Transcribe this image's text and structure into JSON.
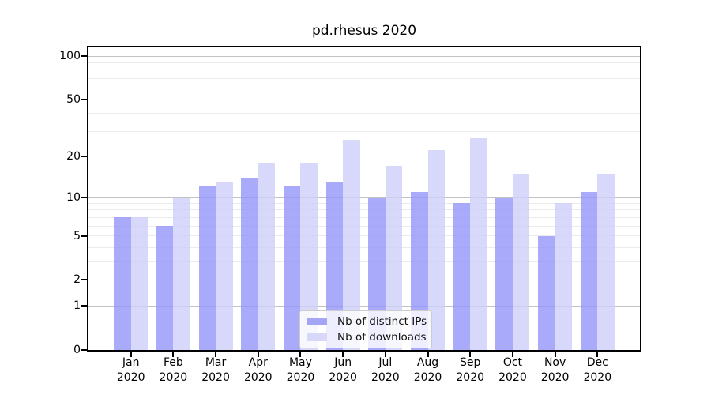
{
  "chart_data": {
    "type": "bar",
    "title": "pd.rhesus 2020",
    "categories": [
      {
        "month": "Jan",
        "year": "2020"
      },
      {
        "month": "Feb",
        "year": "2020"
      },
      {
        "month": "Mar",
        "year": "2020"
      },
      {
        "month": "Apr",
        "year": "2020"
      },
      {
        "month": "May",
        "year": "2020"
      },
      {
        "month": "Jun",
        "year": "2020"
      },
      {
        "month": "Jul",
        "year": "2020"
      },
      {
        "month": "Aug",
        "year": "2020"
      },
      {
        "month": "Sep",
        "year": "2020"
      },
      {
        "month": "Oct",
        "year": "2020"
      },
      {
        "month": "Nov",
        "year": "2020"
      },
      {
        "month": "Dec",
        "year": "2020"
      }
    ],
    "series": [
      {
        "name": "Nb of distinct IPs",
        "color": "rgba(149,149,249,0.8)",
        "legend_color": "#a5a5f5",
        "values": [
          7,
          6,
          12,
          14,
          12,
          13,
          10,
          11,
          9,
          10,
          5,
          11
        ]
      },
      {
        "name": "Nb of downloads",
        "color": "rgba(206,206,249,0.8)",
        "legend_color": "#d8d8fa",
        "values": [
          7,
          10,
          13,
          18,
          18,
          26,
          17,
          22,
          27,
          15,
          9,
          15
        ]
      }
    ],
    "y_axis": {
      "scale": "log10(value+1)",
      "ylim": [
        0,
        115
      ],
      "ticks": [
        0,
        1,
        2,
        5,
        10,
        20,
        50,
        100
      ],
      "major_gridlines": [
        1,
        10,
        100
      ],
      "minor_gridlines": [
        2,
        3,
        4,
        5,
        6,
        7,
        8,
        9,
        20,
        30,
        40,
        50,
        60,
        70,
        80,
        90
      ]
    },
    "xlabel": "",
    "ylabel": "",
    "grid": true,
    "legend_position": "lower center"
  }
}
